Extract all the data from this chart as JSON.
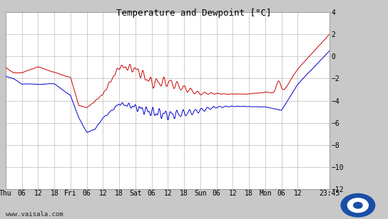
{
  "title": "Temperature and Dewpoint [’C]",
  "title_display": "Temperature and Dewpoint [°C]",
  "ylim": [
    -12,
    4
  ],
  "yticks": [
    -12,
    -10,
    -8,
    -6,
    -4,
    -2,
    0,
    2,
    4
  ],
  "background_color": "#c8c8c8",
  "plot_bg_color": "#ffffff",
  "temp_color": "#cc0000",
  "dewp_color": "#0000cc",
  "grid_color": "#bbbbbb",
  "title_fontsize": 9,
  "tick_fontsize": 7,
  "watermark": "www.vaisala.com",
  "x_tick_labels": [
    "Thu",
    "06",
    "12",
    "18",
    "Fri",
    "06",
    "12",
    "18",
    "Sat",
    "06",
    "12",
    "18",
    "Sun",
    "06",
    "12",
    "18",
    "Mon",
    "06",
    "12",
    "23:45"
  ],
  "x_tick_pos": [
    0,
    6,
    12,
    18,
    24,
    30,
    36,
    42,
    48,
    54,
    60,
    66,
    72,
    78,
    84,
    90,
    96,
    102,
    108,
    119.75
  ],
  "total_hours": 119.75,
  "n_points": 3000
}
